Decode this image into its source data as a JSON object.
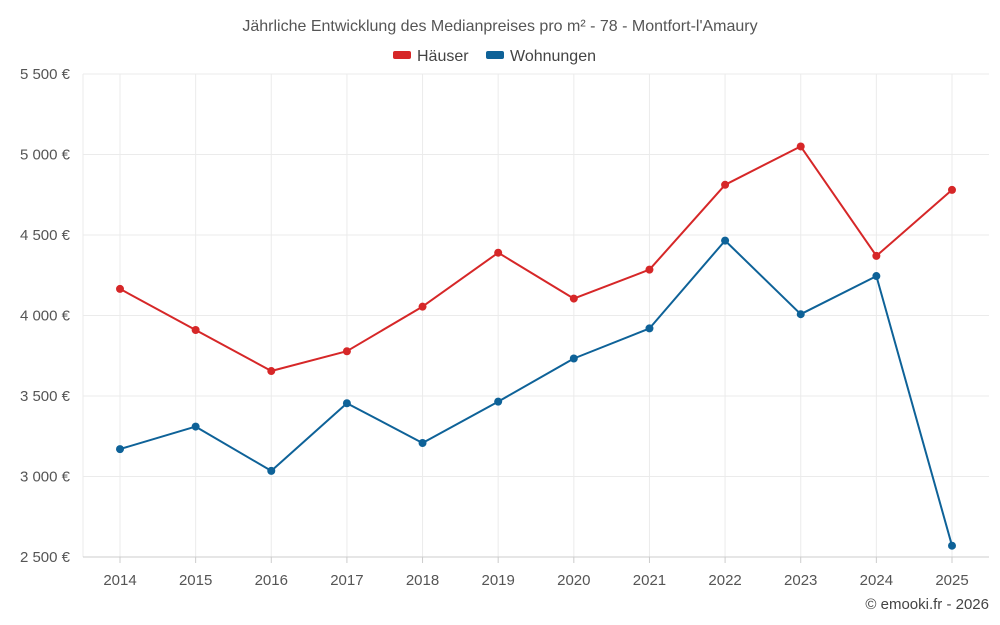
{
  "chart_data": {
    "type": "line",
    "title": "Jährliche Entwicklung des Medianpreises pro m² - 78 - Montfort-l'Amaury",
    "categories": [
      "2014",
      "2015",
      "2016",
      "2017",
      "2018",
      "2019",
      "2020",
      "2021",
      "2022",
      "2023",
      "2024",
      "2025"
    ],
    "series": [
      {
        "name": "Häuser",
        "color": "#d62728",
        "values": [
          4165,
          3910,
          3655,
          3778,
          4055,
          4390,
          4105,
          4285,
          4812,
          5050,
          4370,
          4780
        ]
      },
      {
        "name": "Wohnungen",
        "color": "#0e6298",
        "values": [
          3170,
          3310,
          3035,
          3455,
          3208,
          3465,
          3733,
          3920,
          4465,
          4008,
          4245,
          2570
        ]
      }
    ],
    "ylim": [
      2500,
      5500
    ],
    "yticks": [
      2500,
      3000,
      3500,
      4000,
      4500,
      5000,
      5500
    ],
    "ytick_labels": [
      "2 500 €",
      "3 000 €",
      "3 500 €",
      "4 000 €",
      "4 500 €",
      "5 000 €",
      "5 500 €"
    ],
    "xlabel": "",
    "ylabel": "",
    "grid": true,
    "legend_position": "top-center"
  },
  "credit": "© emooki.fr - 2026"
}
